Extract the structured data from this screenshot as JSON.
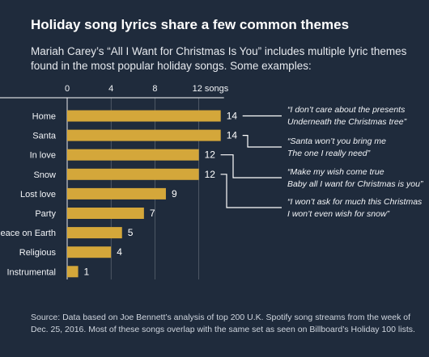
{
  "title": "Holiday song lyrics share a few common themes",
  "subtitle": "Mariah Carey’s “All I Want for Christmas Is You” includes multiple lyric themes found in the most popular holiday songs. Some examples:",
  "source": "Source: Data based on Joe Bennett’s analysis of top 200 U.K. Spotify song streams from the week of Dec. 25, 2016. Most of these songs overlap with the same set as seen on Billboard’s Holiday 100 lists.",
  "colors": {
    "background": "#1f2b3c",
    "bar": "#d4a73a",
    "text": "#ffffff",
    "gridline": "#ffffff"
  },
  "chart_data": {
    "type": "bar",
    "orientation": "horizontal",
    "categories": [
      "Home",
      "Santa",
      "In love",
      "Snow",
      "Lost love",
      "Party",
      "Peace on Earth",
      "Religious",
      "Instrumental"
    ],
    "values": [
      14,
      14,
      12,
      12,
      9,
      7,
      5,
      4,
      1
    ],
    "xticks": [
      {
        "value": 0,
        "label": "0"
      },
      {
        "value": 4,
        "label": "4"
      },
      {
        "value": 8,
        "label": "8"
      },
      {
        "value": 12,
        "label": "12 songs"
      }
    ],
    "xlim": [
      0,
      14
    ],
    "grid": true,
    "annotations": [
      {
        "category": "Home",
        "lines": [
          "“I don’t care about the presents",
          "Underneath the Christmas tree”"
        ]
      },
      {
        "category": "Santa",
        "lines": [
          "“Santa won’t you bring me",
          "The one I really need”"
        ]
      },
      {
        "category": "In love",
        "lines": [
          "“Make my wish come true",
          "Baby all I want for Christmas is you”"
        ]
      },
      {
        "category": "Snow",
        "lines": [
          "“I won’t ask for much this Christmas",
          "I won’t even wish for snow”"
        ]
      }
    ]
  }
}
